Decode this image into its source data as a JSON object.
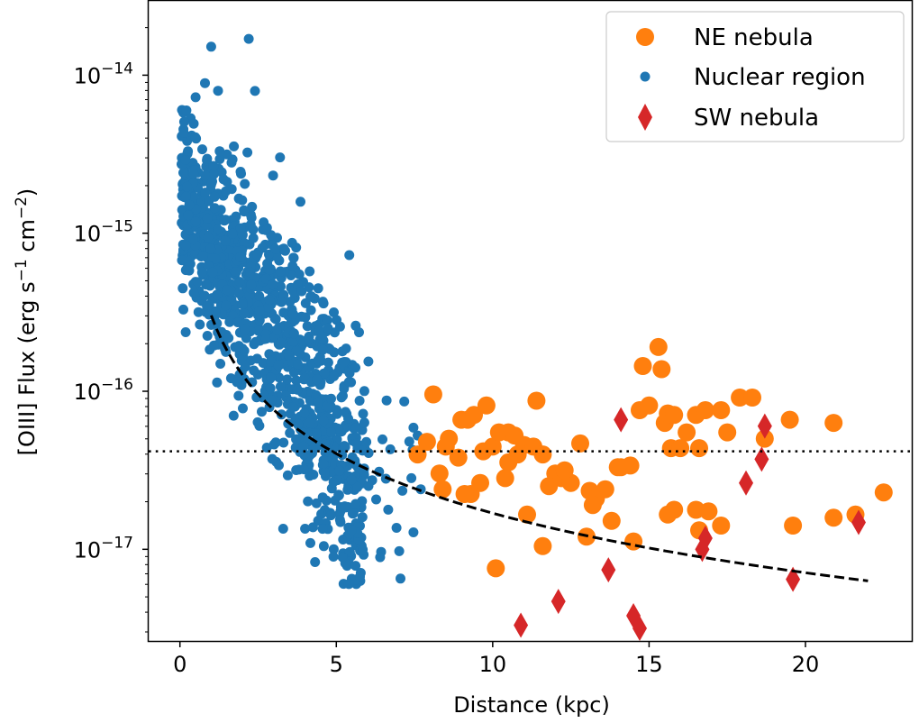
{
  "chart_data": {
    "type": "scatter",
    "xlabel": "Distance (kpc)",
    "ylabel": {
      "base": "[OIII] Flux (erg s",
      "exp1": "−1",
      "mid": " cm",
      "exp2": "−2",
      "end": ")"
    },
    "xlim": [
      -1.0,
      23.4
    ],
    "ylim_log10": [
      -17.58,
      -13.53
    ],
    "yscale": "log",
    "x_ticks": [
      0,
      5,
      10,
      15,
      20
    ],
    "x_tick_labels": [
      "0",
      "5",
      "10",
      "15",
      "20"
    ],
    "y_ticks": [
      {
        "value": -14,
        "base": "10",
        "exp": "−14"
      },
      {
        "value": -15,
        "base": "10",
        "exp": "−15"
      },
      {
        "value": -16,
        "base": "10",
        "exp": "−16"
      },
      {
        "value": -17,
        "base": "10",
        "exp": "−17"
      }
    ],
    "legend": {
      "position": "top-right",
      "entries": [
        {
          "label": "NE nebula",
          "marker": "circle-large",
          "color": "#ff7f0e"
        },
        {
          "label": "Nuclear region",
          "marker": "circle-small",
          "color": "#1f77b4"
        },
        {
          "label": "SW nebula",
          "marker": "diamond",
          "color": "#d62728"
        }
      ]
    },
    "reference_line": {
      "style": "dotted",
      "log10_y": -16.38,
      "label": ""
    },
    "fit_curve": {
      "style": "dashed",
      "x_range": [
        1.0,
        22.0
      ],
      "log10_y_at_start": -15.52,
      "log10_y_at_end": -17.2,
      "form": "log10 y decreasing with log10 x"
    },
    "series": [
      {
        "name": "NE nebula",
        "color": "#ff7f0e",
        "points": [
          [
            7.6,
            -16.4
          ],
          [
            7.9,
            -16.32
          ],
          [
            8.1,
            -16.02
          ],
          [
            8.3,
            -16.52
          ],
          [
            8.4,
            -16.62
          ],
          [
            8.5,
            -16.35
          ],
          [
            8.6,
            -16.3
          ],
          [
            8.9,
            -16.42
          ],
          [
            9.0,
            -16.18
          ],
          [
            9.2,
            -16.18
          ],
          [
            9.3,
            -16.65
          ],
          [
            9.4,
            -16.15
          ],
          [
            9.6,
            -16.58
          ],
          [
            9.7,
            -16.38
          ],
          [
            9.8,
            -16.09
          ],
          [
            10.0,
            -16.35
          ],
          [
            10.2,
            -16.26
          ],
          [
            10.4,
            -16.55
          ],
          [
            10.5,
            -16.26
          ],
          [
            10.7,
            -16.28
          ],
          [
            10.8,
            -16.4
          ],
          [
            11.0,
            -16.34
          ],
          [
            11.1,
            -16.78
          ],
          [
            11.3,
            -16.35
          ],
          [
            11.4,
            -16.06
          ],
          [
            11.6,
            -16.4
          ],
          [
            11.8,
            -16.6
          ],
          [
            12.0,
            -16.52
          ],
          [
            12.2,
            -16.55
          ],
          [
            12.5,
            -16.58
          ],
          [
            12.8,
            -16.33
          ],
          [
            13.1,
            -16.63
          ],
          [
            13.3,
            -16.68
          ],
          [
            13.6,
            -16.62
          ],
          [
            14.0,
            -16.48
          ],
          [
            14.4,
            -16.47
          ],
          [
            14.7,
            -16.12
          ],
          [
            14.8,
            -15.84
          ],
          [
            15.0,
            -16.09
          ],
          [
            15.3,
            -15.72
          ],
          [
            15.4,
            -15.86
          ],
          [
            15.5,
            -16.2
          ],
          [
            15.6,
            -16.14
          ],
          [
            15.7,
            -16.36
          ],
          [
            15.8,
            -16.15
          ],
          [
            16.0,
            -16.36
          ],
          [
            16.2,
            -16.26
          ],
          [
            16.5,
            -16.15
          ],
          [
            16.6,
            -16.36
          ],
          [
            16.8,
            -16.12
          ],
          [
            17.3,
            -16.12
          ],
          [
            17.5,
            -16.26
          ],
          [
            17.9,
            -16.04
          ],
          [
            18.3,
            -16.04
          ],
          [
            18.7,
            -16.3
          ],
          [
            19.5,
            -16.18
          ],
          [
            20.9,
            -16.2
          ],
          [
            10.1,
            -17.12
          ],
          [
            11.6,
            -16.98
          ],
          [
            13.0,
            -16.92
          ],
          [
            13.8,
            -16.82
          ],
          [
            14.5,
            -16.95
          ],
          [
            15.6,
            -16.78
          ],
          [
            15.8,
            -16.75
          ],
          [
            16.5,
            -16.75
          ],
          [
            16.6,
            -16.88
          ],
          [
            16.9,
            -16.76
          ],
          [
            17.3,
            -16.85
          ],
          [
            19.6,
            -16.85
          ],
          [
            20.9,
            -16.8
          ],
          [
            21.6,
            -16.78
          ],
          [
            22.5,
            -16.64
          ],
          [
            9.1,
            -16.65
          ],
          [
            10.5,
            -16.45
          ],
          [
            12.3,
            -16.5
          ],
          [
            13.2,
            -16.72
          ],
          [
            14.1,
            -16.48
          ]
        ]
      },
      {
        "name": "Nuclear region",
        "color": "#1f77b4",
        "generated": "dense cloud of ~1100 points, x 0.05–7.7 kpc, log10 flux from ≈-13.8 near center down to ≈-17.2 near 5.4 kpc",
        "points": []
      },
      {
        "name": "SW nebula",
        "color": "#d62728",
        "points": [
          [
            10.9,
            -17.48
          ],
          [
            12.1,
            -17.33
          ],
          [
            13.7,
            -17.13
          ],
          [
            14.1,
            -16.18
          ],
          [
            14.5,
            -17.42
          ],
          [
            14.7,
            -17.5
          ],
          [
            16.7,
            -17.0
          ],
          [
            16.8,
            -16.93
          ],
          [
            18.1,
            -16.58
          ],
          [
            18.6,
            -16.43
          ],
          [
            18.7,
            -16.22
          ],
          [
            19.6,
            -17.19
          ],
          [
            21.7,
            -16.83
          ]
        ]
      }
    ]
  }
}
